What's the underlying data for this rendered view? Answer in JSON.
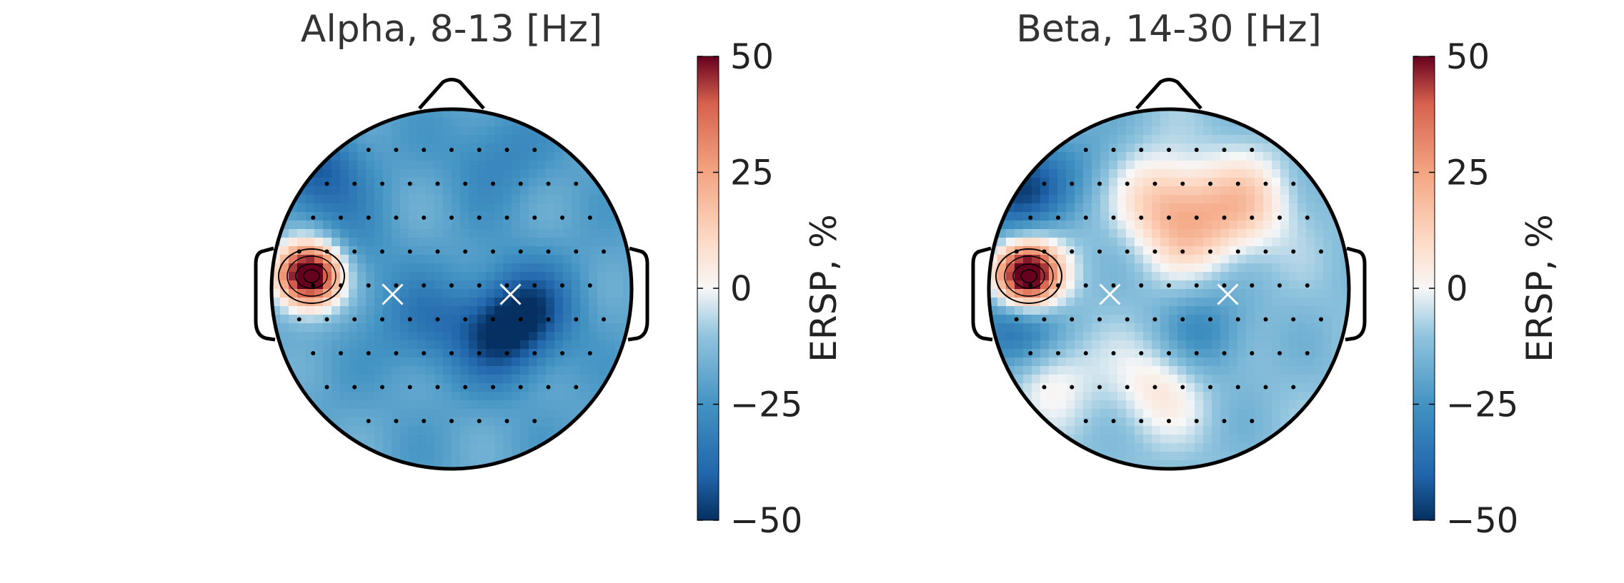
{
  "chart_data": [
    {
      "type": "heatmap",
      "subtype": "scalp-topography",
      "title": "Alpha, 8-13 [Hz]",
      "colorbar": {
        "label": "ERSP, %",
        "range": [
          -50,
          50
        ],
        "ticks": [
          50,
          25,
          0,
          -25,
          -50
        ],
        "tick_labels": [
          "50",
          "25",
          "0",
          "−25",
          "−50"
        ],
        "colormap": "RdBu_r"
      },
      "hotspots": [
        {
          "x": -0.8,
          "y": 0.08,
          "value": 70
        },
        {
          "x": -0.76,
          "y": 0.66,
          "value": -42
        },
        {
          "x": 0.28,
          "y": -0.25,
          "value": -45
        },
        {
          "x": 0.45,
          "y": -0.1,
          "value": -38
        },
        {
          "x": -0.15,
          "y": -0.2,
          "value": -33
        },
        {
          "x": 0.25,
          "y": 0.75,
          "value": -30
        },
        {
          "x": -0.6,
          "y": 0.18,
          "value": -28
        },
        {
          "x": -0.65,
          "y": -0.6,
          "value": -20
        }
      ],
      "baseline": -20,
      "markers": [
        {
          "x": -0.33,
          "y": -0.03
        },
        {
          "x": 0.33,
          "y": -0.03
        }
      ],
      "significant_contours_at": {
        "x": -0.8,
        "y": 0.08
      }
    },
    {
      "type": "heatmap",
      "subtype": "scalp-topography",
      "title": "Beta, 14-30 [Hz]",
      "colorbar": {
        "label": "ERSP, %",
        "range": [
          -50,
          50
        ],
        "ticks": [
          50,
          25,
          0,
          -25,
          -50
        ],
        "tick_labels": [
          "50",
          "25",
          "0",
          "−25",
          "−50"
        ],
        "colormap": "RdBu_r"
      },
      "hotspots": [
        {
          "x": -0.8,
          "y": 0.08,
          "value": 70
        },
        {
          "x": -0.86,
          "y": 0.55,
          "value": -48
        },
        {
          "x": -0.86,
          "y": -0.25,
          "value": -45
        },
        {
          "x": 0.2,
          "y": -0.25,
          "value": -28
        },
        {
          "x": -0.05,
          "y": 0.52,
          "value": 10
        },
        {
          "x": 0.12,
          "y": 0.32,
          "value": 8
        },
        {
          "x": 0.42,
          "y": 0.48,
          "value": 12
        },
        {
          "x": -0.05,
          "y": -0.55,
          "value": 6
        },
        {
          "x": -0.7,
          "y": -0.45,
          "value": 8
        },
        {
          "x": -0.45,
          "y": 0.72,
          "value": -20
        }
      ],
      "baseline": -12,
      "markers": [
        {
          "x": -0.33,
          "y": -0.03
        },
        {
          "x": 0.33,
          "y": -0.03
        }
      ],
      "significant_contours_at": {
        "x": -0.8,
        "y": 0.08
      }
    }
  ]
}
